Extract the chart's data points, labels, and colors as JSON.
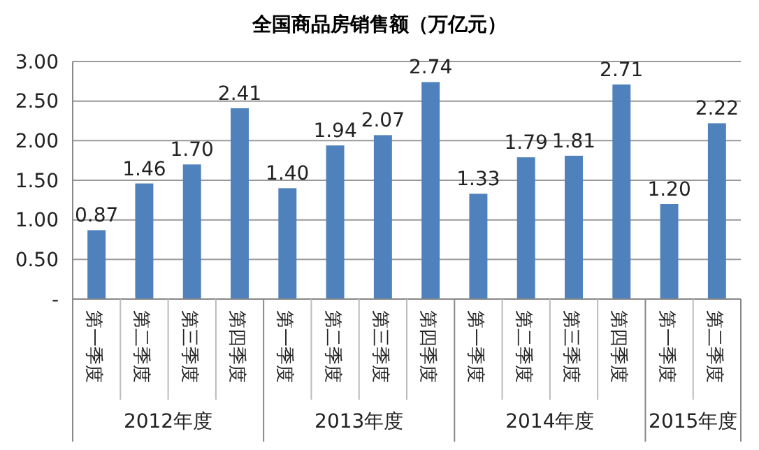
{
  "chart_data": {
    "type": "bar",
    "title": "全国商品房销售额（万亿元）",
    "categories": [
      "第一季度",
      "第二季度",
      "第三季度",
      "第四季度",
      "第一季度",
      "第二季度",
      "第三季度",
      "第四季度",
      "第一季度",
      "第二季度",
      "第三季度",
      "第四季度",
      "第一季度",
      "第二季度"
    ],
    "values": [
      0.87,
      1.46,
      1.7,
      2.41,
      1.4,
      1.94,
      2.07,
      2.74,
      1.33,
      1.79,
      1.81,
      2.71,
      1.2,
      2.22
    ],
    "value_labels": [
      "0.87",
      "1.46",
      "1.70",
      "2.41",
      "1.40",
      "1.94",
      "2.07",
      "2.74",
      "1.33",
      "1.79",
      "1.81",
      "2.71",
      "1.20",
      "2.22"
    ],
    "color": "#4f81bd",
    "ylim": [
      0,
      3
    ],
    "yticks": [
      {
        "value": 0,
        "label": "-"
      },
      {
        "value": 0.5,
        "label": "0.50"
      },
      {
        "value": 1,
        "label": "1.00"
      },
      {
        "value": 1.5,
        "label": "1.50"
      },
      {
        "value": 2,
        "label": "2.00"
      },
      {
        "value": 2.5,
        "label": "2.50"
      },
      {
        "value": 3,
        "label": "3.00"
      }
    ],
    "grid": "y",
    "annotations": [
      "2012年度",
      "2013年度",
      "2014年度",
      "2015年度"
    ]
  }
}
